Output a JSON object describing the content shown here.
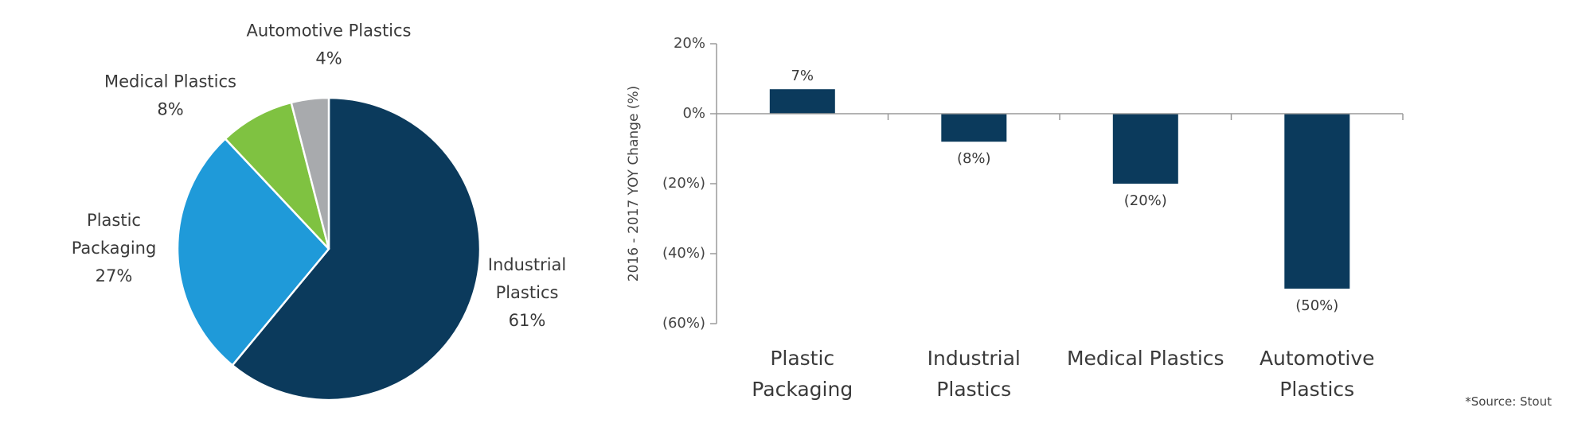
{
  "chart_data": [
    {
      "type": "pie",
      "slices": [
        {
          "label_lines": [
            "Industrial",
            "Plastics"
          ],
          "value": 61,
          "value_label": "61%",
          "color": "#0b3a5c"
        },
        {
          "label_lines": [
            "Plastic",
            "Packaging"
          ],
          "value": 27,
          "value_label": "27%",
          "color": "#1f9ad9"
        },
        {
          "label_lines": [
            "Medical Plastics"
          ],
          "value": 8,
          "value_label": "8%",
          "color": "#7fc241"
        },
        {
          "label_lines": [
            "Automotive Plastics"
          ],
          "value": 4,
          "value_label": "4%",
          "color": "#a8aaad"
        }
      ]
    },
    {
      "type": "bar",
      "categories": [
        {
          "lines": [
            "Plastic",
            "Packaging"
          ]
        },
        {
          "lines": [
            "Industrial",
            "Plastics"
          ]
        },
        {
          "lines": [
            "Medical Plastics"
          ]
        },
        {
          "lines": [
            "Automotive",
            "Plastics"
          ]
        }
      ],
      "values": [
        7,
        -8,
        -20,
        -50
      ],
      "value_labels": [
        "7%",
        "(8%)",
        "(20%)",
        "(50%)"
      ],
      "ylabel": "2016 - 2017 YOY Change (%)",
      "ylim": [
        -60,
        20
      ],
      "yticks": [
        20,
        0,
        -20,
        -40,
        -60
      ],
      "ytick_labels": [
        "20%",
        "0%",
        "(20%)",
        "(40%)",
        "(60%)"
      ],
      "bar_color": "#0b3a5c",
      "grid": false
    }
  ],
  "source_note": "*Source: Stout"
}
